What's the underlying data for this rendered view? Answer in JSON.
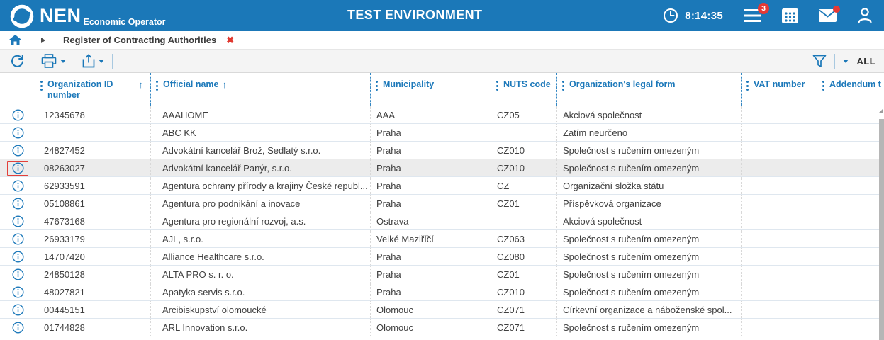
{
  "topbar": {
    "logo": "NEN",
    "logo_subtitle": "Economic Operator",
    "environment_title": "TEST ENVIRONMENT",
    "time": "8:14:35",
    "tasks_badge": "3"
  },
  "breadcrumb": {
    "title": "Register of Contracting Authorities",
    "close_glyph": "✖"
  },
  "toolbar": {
    "filter_scope": "ALL"
  },
  "colors": {
    "brand_blue": "#1b78b8",
    "header_text_blue": "#1d79ba",
    "badge_red": "#e53935",
    "close_red": "#e0382f",
    "focus_red": "#e2403a",
    "highlight_row": "#ececec"
  },
  "table": {
    "columns": [
      {
        "field": "organization_id",
        "label": "Organization ID number",
        "sort": "asc"
      },
      {
        "field": "official_name",
        "label": "Official name",
        "sort": "asc"
      },
      {
        "field": "municipality",
        "label": "Municipality"
      },
      {
        "field": "nuts_code",
        "label": "NUTS code"
      },
      {
        "field": "legal_form",
        "label": "Organization's legal form"
      },
      {
        "field": "vat_number",
        "label": "VAT number"
      },
      {
        "field": "addendum",
        "label": "Addendum t"
      }
    ],
    "rows": [
      {
        "organization_id": "12345678",
        "official_name": "AAAHOME",
        "municipality": "AAA",
        "nuts_code": "CZ05",
        "legal_form": "Akciová společnost",
        "vat_number": "",
        "addendum": ""
      },
      {
        "organization_id": "",
        "official_name": "ABC KK",
        "municipality": "Praha",
        "nuts_code": "",
        "legal_form": "Zatím neurčeno",
        "vat_number": "",
        "addendum": ""
      },
      {
        "organization_id": "24827452",
        "official_name": "Advokátní kancelář Brož, Sedlatý s.r.o.",
        "municipality": "Praha",
        "nuts_code": "CZ010",
        "legal_form": "Společnost s ručením omezeným",
        "vat_number": "",
        "addendum": ""
      },
      {
        "organization_id": "08263027",
        "official_name": "Advokátní kancelář Panýr, s.r.o.",
        "municipality": "Praha",
        "nuts_code": "CZ010",
        "legal_form": "Společnost s ručením omezeným",
        "vat_number": "",
        "addendum": "",
        "highlighted": true
      },
      {
        "organization_id": "62933591",
        "official_name": "Agentura ochrany přírody a krajiny České republ...",
        "municipality": "Praha",
        "nuts_code": "CZ",
        "legal_form": "Organizační složka státu",
        "vat_number": "",
        "addendum": ""
      },
      {
        "organization_id": "05108861",
        "official_name": "Agentura pro podnikání a inovace",
        "municipality": "Praha",
        "nuts_code": "CZ01",
        "legal_form": "Příspěvková organizace",
        "vat_number": "",
        "addendum": ""
      },
      {
        "organization_id": "47673168",
        "official_name": "Agentura pro regionální rozvoj, a.s.",
        "municipality": "Ostrava",
        "nuts_code": "",
        "legal_form": "Akciová společnost",
        "vat_number": "",
        "addendum": ""
      },
      {
        "organization_id": "26933179",
        "official_name": "AJL, s.r.o.",
        "municipality": "Velké Maziříčí",
        "nuts_code": "CZ063",
        "legal_form": "Společnost s ručením omezeným",
        "vat_number": "",
        "addendum": ""
      },
      {
        "organization_id": "14707420",
        "official_name": "Alliance Healthcare s.r.o.",
        "municipality": "Praha",
        "nuts_code": "CZ080",
        "legal_form": "Společnost s ručením omezeným",
        "vat_number": "",
        "addendum": ""
      },
      {
        "organization_id": "24850128",
        "official_name": "ALTA PRO s. r. o.",
        "municipality": "Praha",
        "nuts_code": "CZ01",
        "legal_form": "Společnost s ručením omezeným",
        "vat_number": "",
        "addendum": ""
      },
      {
        "organization_id": "48027821",
        "official_name": "Apatyka servis s.r.o.",
        "municipality": "Praha",
        "nuts_code": "CZ010",
        "legal_form": "Společnost s ručením omezeným",
        "vat_number": "",
        "addendum": ""
      },
      {
        "organization_id": "00445151",
        "official_name": "Arcibiskupství olomoucké",
        "municipality": "Olomouc",
        "nuts_code": "CZ071",
        "legal_form": "Církevní organizace a náboženské spol...",
        "vat_number": "",
        "addendum": ""
      },
      {
        "organization_id": "01744828",
        "official_name": "ARL Innovation s.r.o.",
        "municipality": "Olomouc",
        "nuts_code": "CZ071",
        "legal_form": "Společnost s ručením omezeným",
        "vat_number": "",
        "addendum": ""
      }
    ]
  }
}
